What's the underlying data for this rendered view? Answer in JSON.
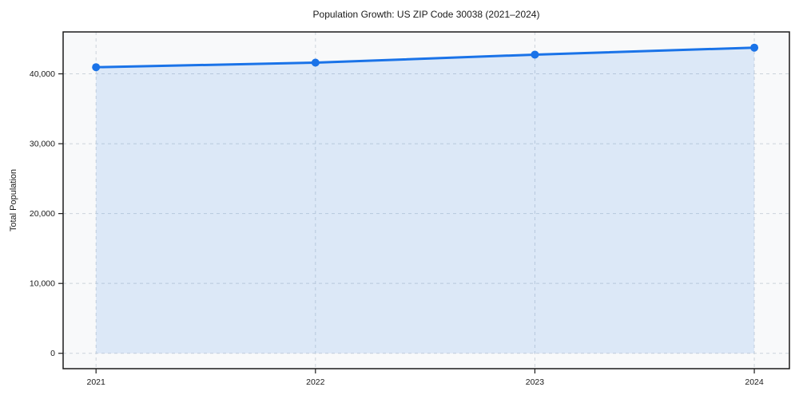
{
  "chart_data": {
    "type": "area",
    "title": "Population Growth: US ZIP Code 30038 (2021–2024)",
    "xlabel": "",
    "ylabel": "Total Population",
    "x": [
      2021,
      2022,
      2023,
      2024
    ],
    "xtick_labels": [
      "2021",
      "2022",
      "2023",
      "2024"
    ],
    "series": [
      {
        "name": "Total Population",
        "values": [
          40950,
          41600,
          42750,
          43750
        ]
      }
    ],
    "yticks": [
      0,
      10000,
      20000,
      30000,
      40000
    ],
    "ytick_labels": [
      "0",
      "10,000",
      "20,000",
      "30,000",
      "40,000"
    ],
    "xlim": [
      2020.85,
      2024.16
    ],
    "ylim": [
      -2200,
      46000
    ],
    "grid": true,
    "grid_style": "dashed",
    "legend": "none",
    "fill_to_value": 0,
    "colors": {
      "line": "#1a73e8",
      "marker": "#1a73e8",
      "fill": "rgba(26,115,232,0.12)",
      "grid": "#ccd3db",
      "spine": "#1a1a1a",
      "plot_bg": "#f8f9fa",
      "text": "#1a1a1a"
    }
  }
}
